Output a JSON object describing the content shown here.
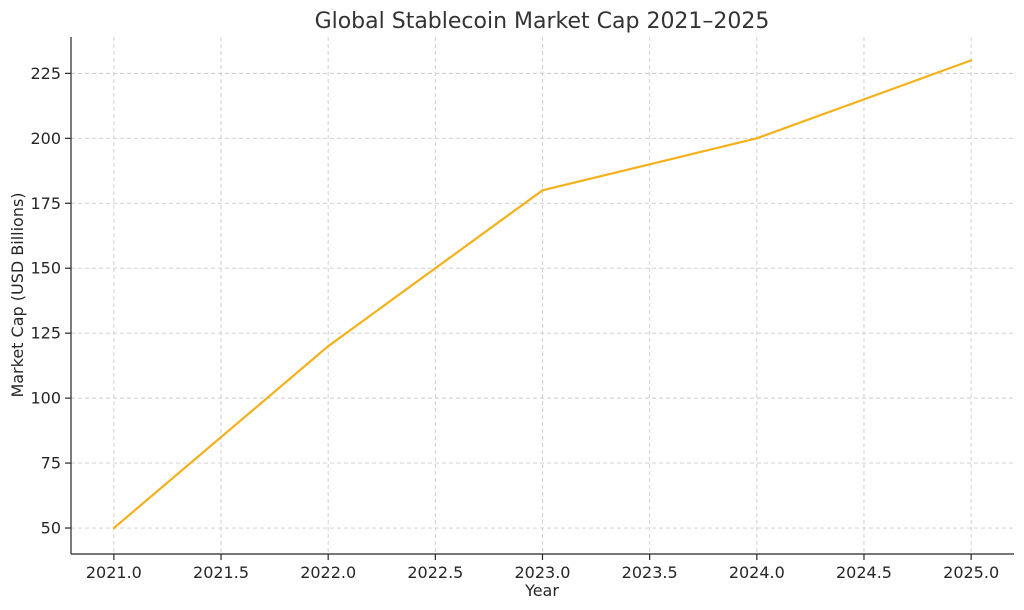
{
  "chart_data": {
    "type": "line",
    "title": "Global Stablecoin Market Cap 2021–2025",
    "xlabel": "Year",
    "ylabel": "Market Cap (USD Billions)",
    "xlim": [
      2020.8,
      2025.2
    ],
    "ylim": [
      40,
      239
    ],
    "x_ticks": [
      "2021.0",
      "2021.5",
      "2022.0",
      "2022.5",
      "2023.0",
      "2023.5",
      "2024.0",
      "2024.5",
      "2025.0"
    ],
    "y_ticks": [
      "50",
      "75",
      "100",
      "125",
      "150",
      "175",
      "200",
      "225"
    ],
    "grid": true,
    "series": [
      {
        "color": "#f5b01a",
        "x": [
          2021,
          2022,
          2023,
          2024,
          2025
        ],
        "y": [
          50,
          120,
          180,
          200,
          230
        ]
      }
    ]
  }
}
